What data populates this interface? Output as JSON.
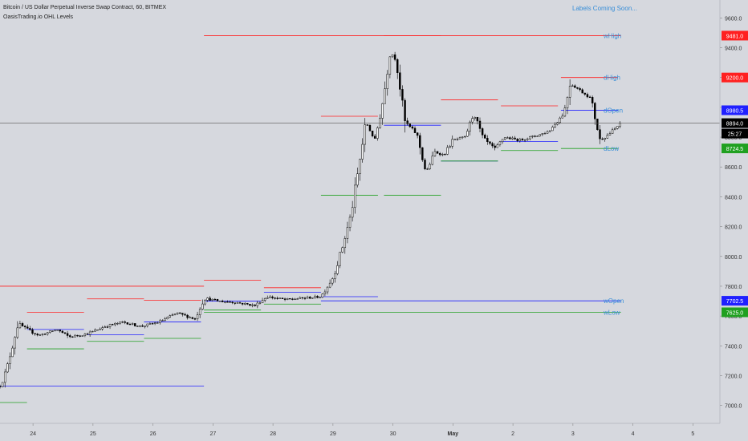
{
  "header": {
    "title": "Bitcoin / US Dollar Perpetual Inverse Swap Contract, 60, BITMEX",
    "indicator": "OasisTrading.io OHL Levels",
    "notice": "Labels Coming Soon..."
  },
  "colors": {
    "background": "#d6d8de",
    "high": "#ff2020",
    "open": "#2020ff",
    "low": "#20a020",
    "label_text": "#3a8fd8",
    "candle": "#000000",
    "price_tag": "#000000"
  },
  "chart_data": {
    "type": "candlestick",
    "ylim": [
      6880,
      9720
    ],
    "xlim": [
      23.45,
      5.45
    ],
    "y_ticks": [
      {
        "value": 7000,
        "label": "7000.0"
      },
      {
        "value": 7200,
        "label": "7200.0"
      },
      {
        "value": 7400,
        "label": "7400.0"
      },
      {
        "value": 7600,
        "label": "7600.0"
      },
      {
        "value": 7800,
        "label": "7800.0"
      },
      {
        "value": 8000,
        "label": "8000.0"
      },
      {
        "value": 8200,
        "label": "8200.0"
      },
      {
        "value": 8400,
        "label": "8400.0"
      },
      {
        "value": 8600,
        "label": "8600.0"
      },
      {
        "value": 8800,
        "label": "8800.0"
      },
      {
        "value": 9000,
        "label": "9000.0"
      },
      {
        "value": 9200,
        "label": "9200.0"
      },
      {
        "value": 9400,
        "label": "9400.0"
      },
      {
        "value": 9600,
        "label": "9600.0"
      }
    ],
    "x_ticks": [
      {
        "label": "24",
        "day": 24
      },
      {
        "label": "25",
        "day": 25
      },
      {
        "label": "26",
        "day": 26
      },
      {
        "label": "27",
        "day": 27
      },
      {
        "label": "28",
        "day": 28
      },
      {
        "label": "29",
        "day": 29
      },
      {
        "label": "30",
        "day": 30
      },
      {
        "label": "May",
        "day": 31,
        "bold": true
      },
      {
        "label": "2",
        "day": 32
      },
      {
        "label": "3",
        "day": 33
      },
      {
        "label": "4",
        "day": 34
      },
      {
        "label": "5",
        "day": 35
      }
    ],
    "current_price": {
      "value": 8894.0,
      "label": "8894.0",
      "countdown": "25:27"
    },
    "level_tags": [
      {
        "value": 9481.0,
        "label": "9481.0",
        "color": "#ff2020",
        "name": "wHigh"
      },
      {
        "value": 9200.0,
        "label": "9200.0",
        "color": "#ff2020",
        "name": "dHigh"
      },
      {
        "value": 8980.5,
        "label": "8980.5",
        "color": "#2020ff",
        "name": "dOpen"
      },
      {
        "value": 8724.5,
        "label": "8724.5",
        "color": "#20a020",
        "name": "dLow"
      },
      {
        "value": 7702.5,
        "label": "7702.5",
        "color": "#2020ff",
        "name": "wOpen"
      },
      {
        "value": 7625.0,
        "label": "7625.0",
        "color": "#20a020",
        "name": "wLow"
      }
    ],
    "level_labels": [
      {
        "text": "wHigh",
        "value": 9481
      },
      {
        "text": "dHigh",
        "value": 9200
      },
      {
        "text": "dOpen",
        "value": 8980
      },
      {
        "text": "dLow",
        "value": 8724
      },
      {
        "text": "wOpen",
        "value": 7702
      },
      {
        "text": "wLow",
        "value": 7625
      }
    ],
    "weekly_levels": [
      {
        "kind": "high",
        "value": 7800,
        "from": 23.45,
        "to": 26.85
      },
      {
        "kind": "open",
        "value": 7130,
        "from": 23.45,
        "to": 26.85
      },
      {
        "kind": "low",
        "value": 7020,
        "from": 23.45,
        "to": 23.9
      },
      {
        "kind": "high",
        "value": 9481,
        "from": 26.85,
        "to": 33.8
      },
      {
        "kind": "open",
        "value": 7702,
        "from": 28.8,
        "to": 33.8
      },
      {
        "kind": "low",
        "value": 7625,
        "from": 26.85,
        "to": 33.8
      }
    ],
    "daily_levels": [
      {
        "day": 23.9,
        "high": 7625,
        "open": 7510,
        "low": 7380
      },
      {
        "day": 24.9,
        "high": 7715,
        "open": 7475,
        "low": 7430
      },
      {
        "day": 25.85,
        "high": 7705,
        "open": 7560,
        "low": 7450
      },
      {
        "day": 26.85,
        "high": 7840,
        "open": 7700,
        "low": 7640
      },
      {
        "day": 27.85,
        "high": 7790,
        "open": 7760,
        "low": 7680
      },
      {
        "day": 28.8,
        "high": 8940,
        "open": 7730,
        "low": 8410
      },
      {
        "day": 29.85,
        "high": 9481,
        "open": 8880,
        "low": 8410
      },
      {
        "day": 30.8,
        "high": 9050,
        "open": 8640,
        "low": 8640
      },
      {
        "day": 31.8,
        "high": 9010,
        "open": 8770,
        "low": 8710
      },
      {
        "day": 32.8,
        "high": 9200,
        "open": 8980,
        "low": 8724
      }
    ],
    "price_anchors": [
      [
        23.45,
        7130
      ],
      [
        23.55,
        7230
      ],
      [
        23.75,
        7550
      ],
      [
        23.9,
        7510
      ],
      [
        24.1,
        7470
      ],
      [
        24.4,
        7510
      ],
      [
        24.6,
        7460
      ],
      [
        24.9,
        7480
      ],
      [
        25.2,
        7530
      ],
      [
        25.5,
        7560
      ],
      [
        25.8,
        7530
      ],
      [
        26.1,
        7560
      ],
      [
        26.4,
        7620
      ],
      [
        26.7,
        7580
      ],
      [
        26.85,
        7720
      ],
      [
        27.1,
        7700
      ],
      [
        27.4,
        7690
      ],
      [
        27.7,
        7670
      ],
      [
        27.9,
        7730
      ],
      [
        28.2,
        7710
      ],
      [
        28.5,
        7720
      ],
      [
        28.8,
        7730
      ],
      [
        29.0,
        7860
      ],
      [
        29.15,
        8050
      ],
      [
        29.3,
        8280
      ],
      [
        29.45,
        8650
      ],
      [
        29.55,
        8900
      ],
      [
        29.7,
        8780
      ],
      [
        29.85,
        9080
      ],
      [
        29.95,
        9380
      ],
      [
        30.05,
        9320
      ],
      [
        30.2,
        8900
      ],
      [
        30.4,
        8820
      ],
      [
        30.55,
        8560
      ],
      [
        30.7,
        8700
      ],
      [
        30.85,
        8680
      ],
      [
        31.0,
        8780
      ],
      [
        31.2,
        8800
      ],
      [
        31.35,
        8960
      ],
      [
        31.5,
        8790
      ],
      [
        31.7,
        8720
      ],
      [
        31.85,
        8800
      ],
      [
        32.1,
        8780
      ],
      [
        32.4,
        8810
      ],
      [
        32.6,
        8840
      ],
      [
        32.85,
        8960
      ],
      [
        32.95,
        9160
      ],
      [
        33.1,
        9120
      ],
      [
        33.3,
        9060
      ],
      [
        33.45,
        8780
      ],
      [
        33.6,
        8820
      ],
      [
        33.8,
        8894
      ]
    ]
  }
}
